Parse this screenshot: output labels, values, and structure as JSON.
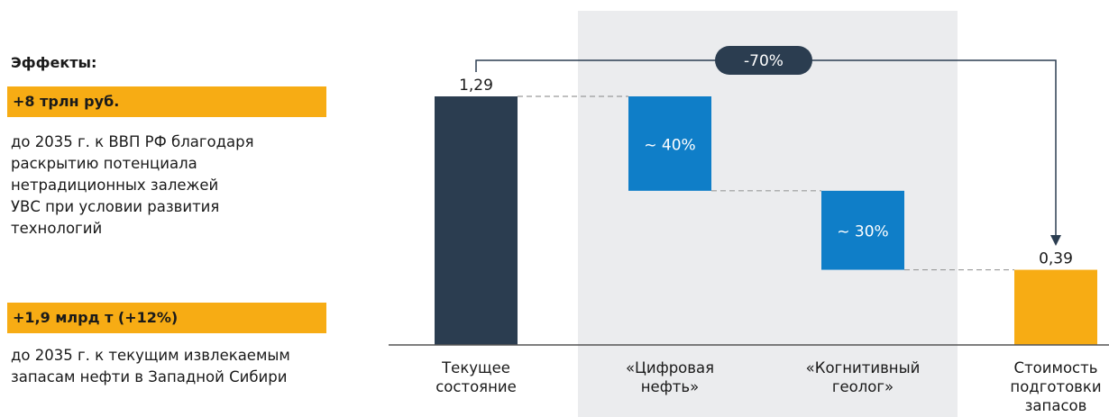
{
  "effects": {
    "title": "Эффекты:",
    "items": [
      {
        "badge": "+8 трлн руб.",
        "text": "до 2035 г. к ВВП РФ благодаря\nраскрытию потенциала\nнетрадиционных залежей\nУВС при условии развития\nтехнологий"
      },
      {
        "badge": "+1,9 млрд т (+12%)",
        "text": "до 2035 г. к текущим извлекаемым\nзапасам нефти в Западной Сибири"
      }
    ]
  },
  "chart_data": {
    "type": "bar",
    "subtype": "waterfall",
    "categories": [
      [
        "Текущее",
        "состояние"
      ],
      [
        "«Цифровая",
        "нефть»"
      ],
      [
        "«Когнитивный",
        "геолог»"
      ],
      [
        "Стоимость",
        "подготовки",
        "запасов"
      ]
    ],
    "bars": [
      {
        "kind": "total",
        "from": 0,
        "to": 1.29,
        "label": "1,29",
        "label_position": "above",
        "color": "#2b3d50"
      },
      {
        "kind": "delta",
        "from": 1.29,
        "to": 0.8,
        "label": "~ 40%",
        "label_position": "inside",
        "color": "#0f7ec8"
      },
      {
        "kind": "delta",
        "from": 0.8,
        "to": 0.39,
        "label": "~ 30%",
        "label_position": "inside",
        "color": "#0f7ec8"
      },
      {
        "kind": "total",
        "from": 0,
        "to": 0.39,
        "label": "0,39",
        "label_position": "above",
        "color": "#f7ac14"
      }
    ],
    "ylim": [
      0,
      1.29
    ],
    "grid": false,
    "connectors": "dashed",
    "highlight_categories": [
      1,
      2
    ],
    "highlight_color": "#ebecee",
    "change_annotation": {
      "label": "-70%",
      "from_category": 0,
      "to_category": 3
    }
  }
}
